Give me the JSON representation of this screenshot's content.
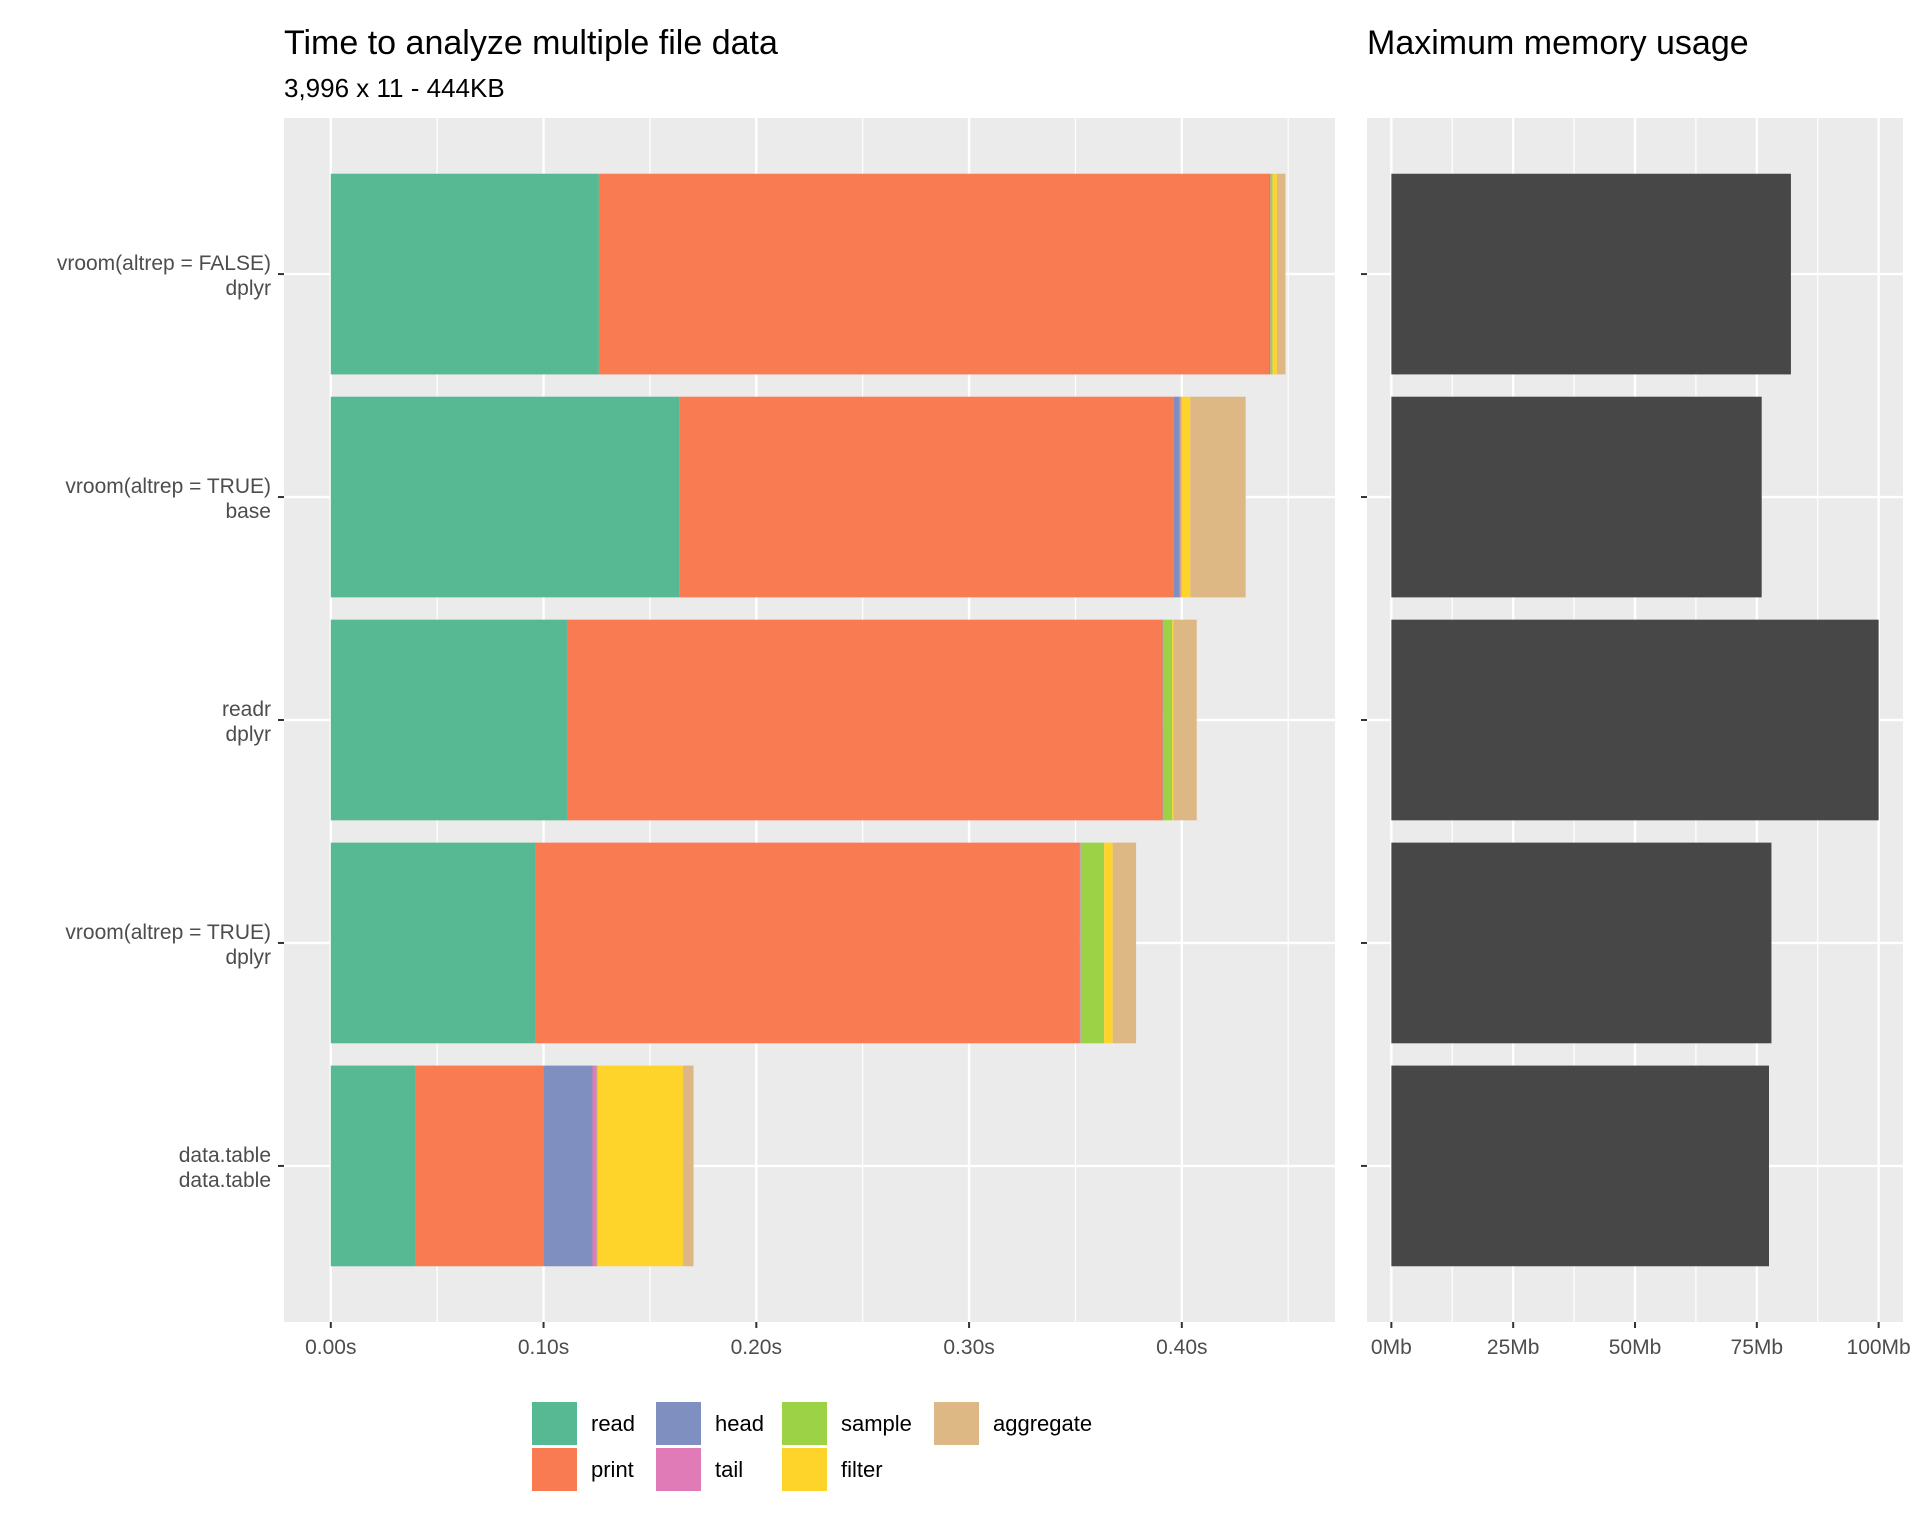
{
  "chart_data": [
    {
      "type": "bar",
      "orientation": "horizontal",
      "stacked": true,
      "title": "Time to analyze multiple file data",
      "subtitle": "3,996 x 11 - 444KB",
      "xlabel": "",
      "ylabel": "",
      "xlim": [
        -0.022,
        0.472
      ],
      "xticks": [
        0.0,
        0.1,
        0.2,
        0.3,
        0.4
      ],
      "xtick_labels": [
        "0.00s",
        "0.10s",
        "0.20s",
        "0.30s",
        "0.40s"
      ],
      "categories": [
        [
          "vroom(altrep = FALSE)",
          "dplyr"
        ],
        [
          "vroom(altrep = TRUE)",
          "base"
        ],
        [
          "readr",
          "dplyr"
        ],
        [
          "vroom(altrep = TRUE)",
          "dplyr"
        ],
        [
          "data.table",
          "data.table"
        ]
      ],
      "series": [
        {
          "name": "read",
          "color": "#57B894",
          "values": [
            0.126,
            0.164,
            0.111,
            0.096,
            0.04
          ]
        },
        {
          "name": "print",
          "color": "#F87B52",
          "values": [
            0.315,
            0.232,
            0.28,
            0.256,
            0.06
          ]
        },
        {
          "name": "head",
          "color": "#7F8FC0",
          "values": [
            0.0005,
            0.003,
            0.0003,
            0.0003,
            0.023
          ]
        },
        {
          "name": "tail",
          "color": "#E07BB8",
          "values": [
            0.0002,
            0.0005,
            0.0002,
            0.0002,
            0.002
          ]
        },
        {
          "name": "sample",
          "color": "#9BD246",
          "values": [
            0.001,
            0.0005,
            0.004,
            0.011,
            0.0005
          ]
        },
        {
          "name": "filter",
          "color": "#FED42B",
          "values": [
            0.002,
            0.004,
            0.0005,
            0.004,
            0.04
          ]
        },
        {
          "name": "aggregate",
          "color": "#DEB884",
          "values": [
            0.004,
            0.026,
            0.011,
            0.011,
            0.005
          ]
        }
      ],
      "grid": true,
      "legend_position": "bottom"
    },
    {
      "type": "bar",
      "orientation": "horizontal",
      "title": "Maximum memory usage",
      "xlabel": "",
      "ylabel": "",
      "xlim": [
        -5,
        105
      ],
      "xticks": [
        0,
        25,
        50,
        75,
        100
      ],
      "xtick_labels": [
        "0Mb",
        "25Mb",
        "50Mb",
        "75Mb",
        "100Mb"
      ],
      "values": [
        82,
        76,
        100,
        78,
        77.5
      ],
      "color": "#474747",
      "grid": true
    }
  ]
}
